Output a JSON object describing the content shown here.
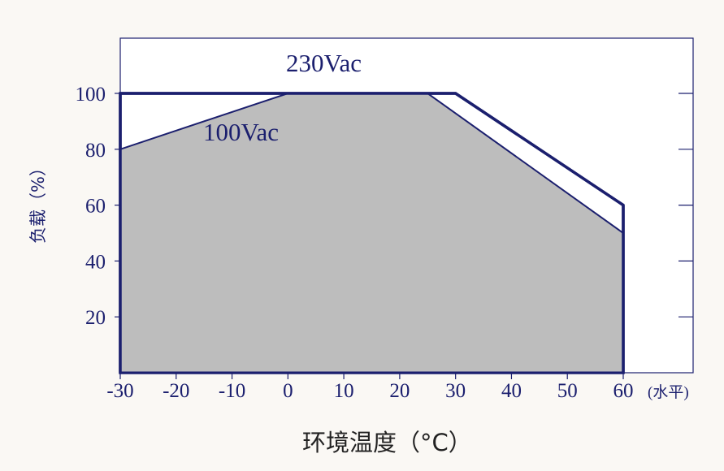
{
  "chart_data": {
    "type": "area",
    "xlabel": "环境温度（°C）",
    "ylabel": "负载（%）",
    "x_unit_note": "(水平)",
    "xlim": [
      -30,
      60
    ],
    "ylim": [
      0,
      100
    ],
    "x_ticks": [
      "-30",
      "-20",
      "-10",
      "0",
      "10",
      "20",
      "30",
      "40",
      "50",
      "60"
    ],
    "y_ticks": [
      "20",
      "40",
      "60",
      "80",
      "100"
    ],
    "grid": false,
    "series": [
      {
        "name": "230Vac",
        "x": [
          -30,
          0,
          30,
          60
        ],
        "y": [
          100,
          100,
          100,
          60
        ]
      },
      {
        "name": "100Vac",
        "x": [
          -30,
          0,
          25,
          60
        ],
        "y": [
          80,
          100,
          100,
          50
        ]
      }
    ],
    "colors": {
      "line": "#1b1f6e",
      "fill_100vac": "#bdbdbd",
      "fill_230vac": "#ffffff",
      "plot_bg": "#ffffff",
      "page_bg": "#faf8f4"
    }
  }
}
